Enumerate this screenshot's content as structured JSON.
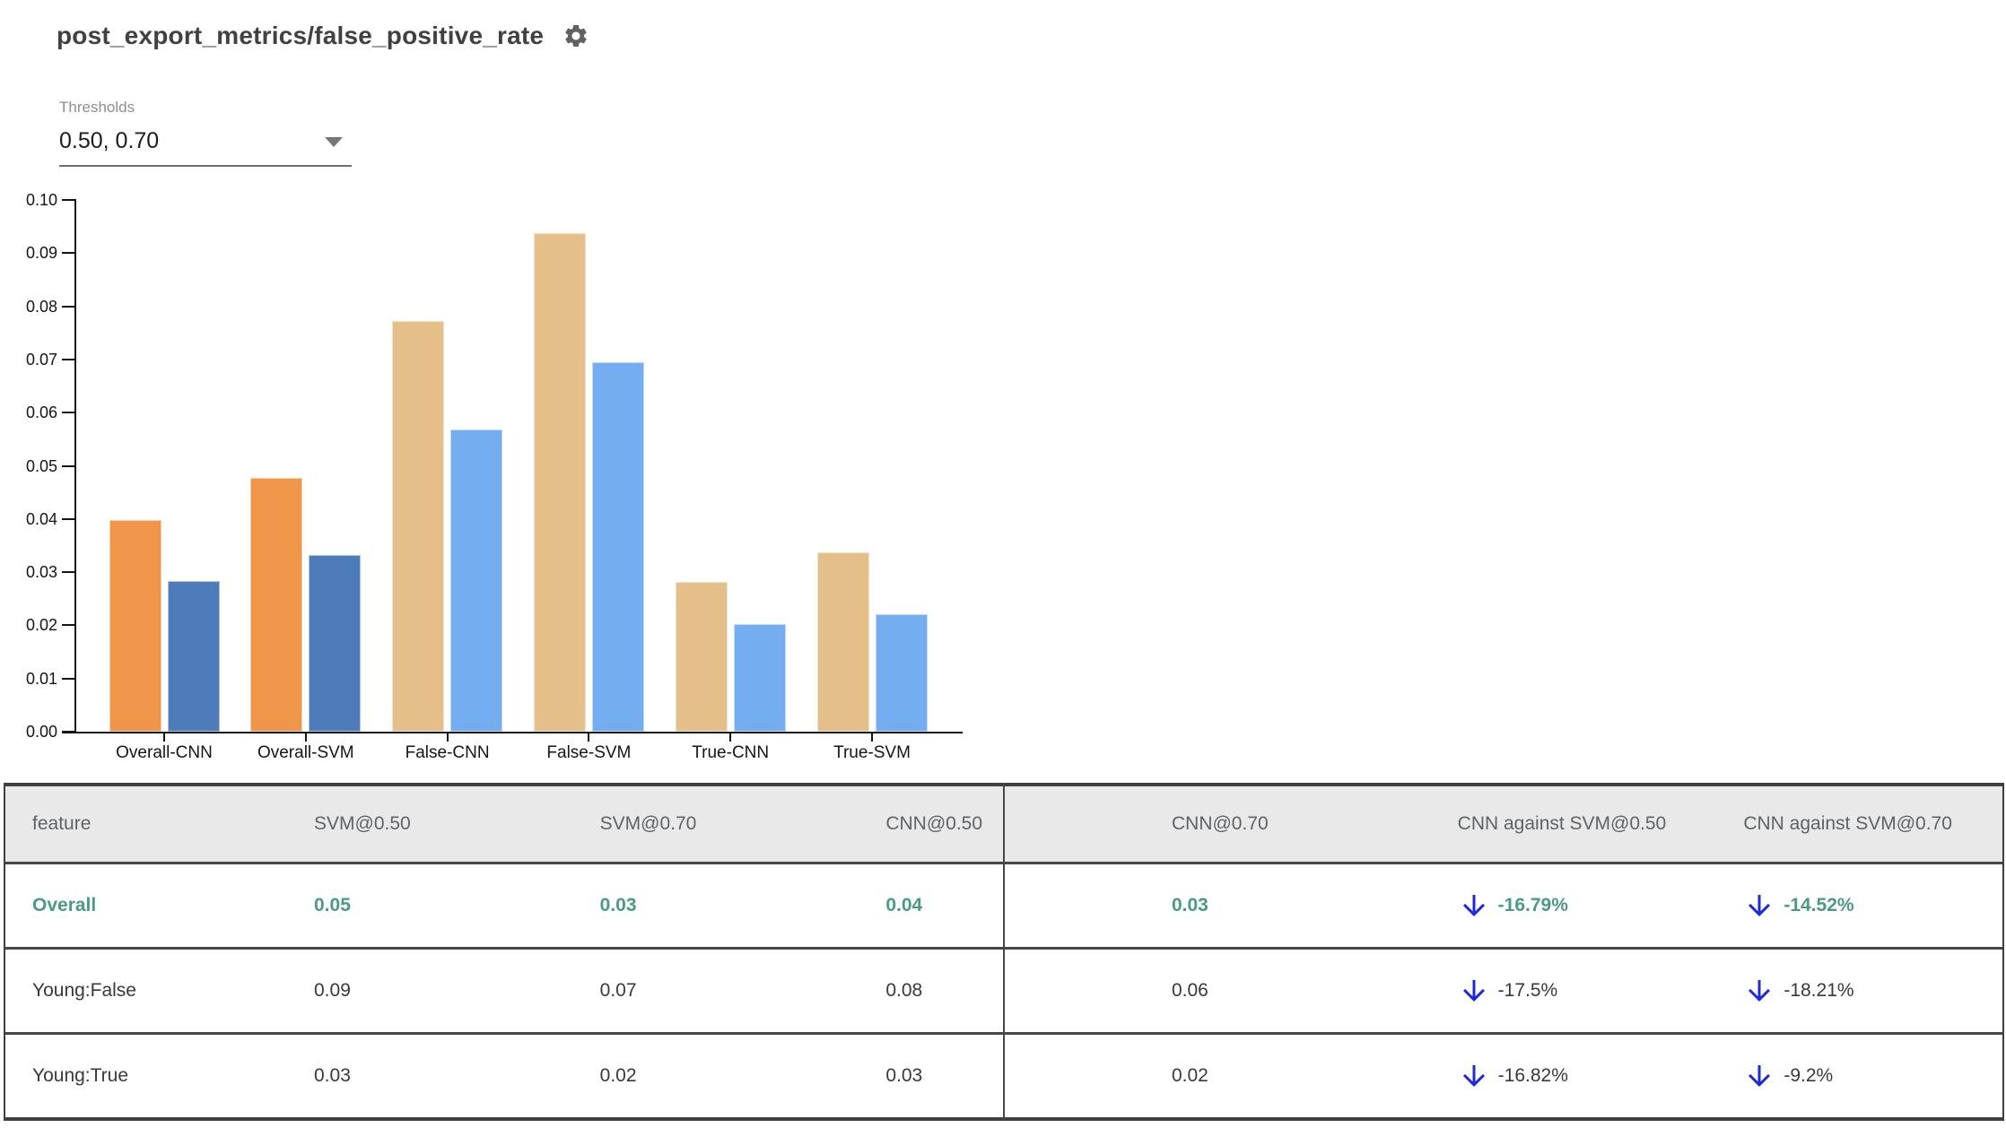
{
  "header": {
    "title": "post_export_metrics/false_positive_rate",
    "settings_icon": "gear-icon"
  },
  "threshold_select": {
    "label": "Thresholds",
    "value": "0.50, 0.70",
    "dropdown_icon": "triangle-down-icon"
  },
  "colors": {
    "highlight_text_green": "#4A9B80",
    "arrow_down_blue": "#1F28DC",
    "bar_threshold_050_overall": "#EF964A",
    "bar_threshold_070_overall": "#4E7CBA",
    "bar_threshold_050_slice": "#E5BF8A",
    "bar_threshold_070_slice": "#74ADF0",
    "table_header_bg": "#E9E9E9",
    "table_border": "#474747"
  },
  "chart_data": {
    "type": "bar",
    "title": "post_export_metrics/false_positive_rate",
    "xlabel": "",
    "ylabel": "",
    "categories": [
      "Overall-CNN",
      "Overall-SVM",
      "False-CNN",
      "False-SVM",
      "True-CNN",
      "True-SVM"
    ],
    "series": [
      {
        "name": "threshold 0.50",
        "values": [
          0.0398,
          0.0478,
          0.0773,
          0.0937,
          0.0281,
          0.0338
        ]
      },
      {
        "name": "threshold 0.70",
        "values": [
          0.0283,
          0.0332,
          0.0568,
          0.0695,
          0.0202,
          0.0221
        ]
      }
    ],
    "emphasized_categories": [
      "Overall-CNN",
      "Overall-SVM"
    ],
    "ylim": [
      0,
      0.1
    ],
    "ytick_step": 0.01,
    "ytick_labels": [
      "0.10",
      "0.09",
      "0.08",
      "0.07",
      "0.06",
      "0.05",
      "0.04",
      "0.03",
      "0.02",
      "0.01",
      "0.00"
    ],
    "grid": false,
    "legend": "none"
  },
  "table": {
    "columns": [
      {
        "key": "feature",
        "label": "feature"
      },
      {
        "key": "svm50",
        "label": "SVM@0.50"
      },
      {
        "key": "svm70",
        "label": "SVM@0.70"
      },
      {
        "key": "cnn50",
        "label": "CNN@0.50"
      },
      {
        "key": "cnn70",
        "label": "CNN@0.70"
      },
      {
        "key": "diff50",
        "label": "CNN against SVM@0.50"
      },
      {
        "key": "diff70",
        "label": "CNN against SVM@0.70"
      }
    ],
    "rows": [
      {
        "feature": "Overall",
        "svm50": "0.05",
        "svm70": "0.03",
        "cnn50": "0.04",
        "cnn70": "0.03",
        "diff50": "-16.79%",
        "diff70": "-14.52%",
        "diff_icon": "arrow-down-icon",
        "highlight": true
      },
      {
        "feature": "Young:False",
        "svm50": "0.09",
        "svm70": "0.07",
        "cnn50": "0.08",
        "cnn70": "0.06",
        "diff50": "-17.5%",
        "diff70": "-18.21%",
        "diff_icon": "arrow-down-icon",
        "highlight": false
      },
      {
        "feature": "Young:True",
        "svm50": "0.03",
        "svm70": "0.02",
        "cnn50": "0.03",
        "cnn70": "0.02",
        "diff50": "-16.82%",
        "diff70": "-9.2%",
        "diff_icon": "arrow-down-icon",
        "highlight": false
      }
    ]
  }
}
